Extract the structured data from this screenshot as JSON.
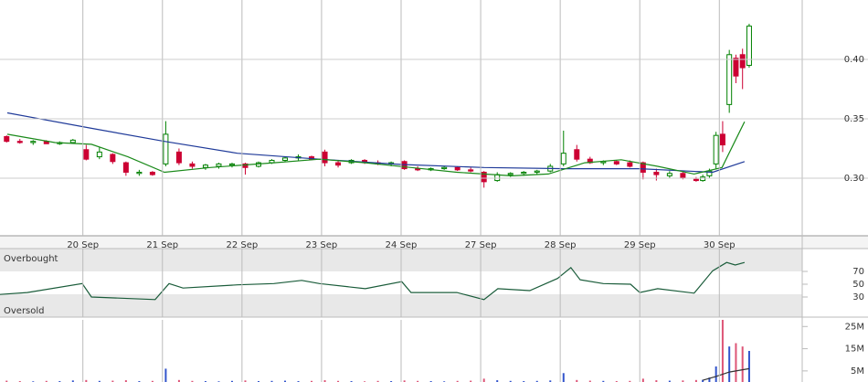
{
  "chart_data": [
    {
      "type": "candlestick",
      "x": [
        1,
        3,
        5,
        7,
        9,
        11,
        13,
        15,
        17,
        19,
        21,
        23,
        25,
        27,
        29,
        31,
        33,
        35,
        37,
        39,
        41,
        43,
        45,
        47,
        49,
        51,
        53,
        55,
        57,
        59,
        61,
        63,
        65,
        67,
        69,
        71,
        73,
        75,
        77,
        79,
        81,
        83,
        85,
        87,
        89,
        91,
        93,
        95,
        97,
        99,
        101,
        103,
        105,
        106,
        107,
        108,
        109,
        110,
        111,
        112,
        113
      ],
      "open": [
        0.335,
        0.331,
        0.33,
        0.331,
        0.329,
        0.33,
        0.324,
        0.318,
        0.32,
        0.313,
        0.304,
        0.305,
        0.312,
        0.322,
        0.312,
        0.309,
        0.31,
        0.311,
        0.312,
        0.31,
        0.313,
        0.315,
        0.317,
        0.318,
        0.322,
        0.313,
        0.313,
        0.315,
        0.313,
        0.312,
        0.314,
        0.308,
        0.307,
        0.308,
        0.309,
        0.307,
        0.305,
        0.298,
        0.303,
        0.304,
        0.305,
        0.306,
        0.312,
        0.324,
        0.316,
        0.313,
        0.314,
        0.313,
        0.313,
        0.305,
        0.302,
        0.304,
        0.299,
        0.298,
        0.302,
        0.312,
        0.337,
        0.362,
        0.401,
        0.404,
        0.395
      ],
      "high": [
        0.336,
        0.333,
        0.332,
        0.332,
        0.331,
        0.333,
        0.328,
        0.326,
        0.321,
        0.314,
        0.307,
        0.306,
        0.348,
        0.325,
        0.314,
        0.312,
        0.313,
        0.313,
        0.313,
        0.314,
        0.316,
        0.318,
        0.32,
        0.319,
        0.324,
        0.315,
        0.316,
        0.316,
        0.315,
        0.314,
        0.315,
        0.31,
        0.309,
        0.31,
        0.31,
        0.309,
        0.306,
        0.305,
        0.305,
        0.306,
        0.307,
        0.312,
        0.34,
        0.328,
        0.318,
        0.315,
        0.315,
        0.315,
        0.314,
        0.308,
        0.306,
        0.305,
        0.301,
        0.303,
        0.308,
        0.339,
        0.348,
        0.408,
        0.404,
        0.409,
        0.43
      ],
      "low": [
        0.33,
        0.329,
        0.328,
        0.329,
        0.328,
        0.329,
        0.315,
        0.316,
        0.312,
        0.302,
        0.302,
        0.302,
        0.31,
        0.311,
        0.308,
        0.307,
        0.308,
        0.309,
        0.303,
        0.309,
        0.312,
        0.314,
        0.315,
        0.315,
        0.31,
        0.309,
        0.312,
        0.312,
        0.311,
        0.31,
        0.307,
        0.306,
        0.306,
        0.307,
        0.306,
        0.305,
        0.292,
        0.297,
        0.301,
        0.302,
        0.303,
        0.305,
        0.31,
        0.314,
        0.312,
        0.311,
        0.311,
        0.309,
        0.299,
        0.298,
        0.3,
        0.299,
        0.297,
        0.297,
        0.3,
        0.308,
        0.322,
        0.355,
        0.38,
        0.375,
        0.393
      ],
      "close": [
        0.331,
        0.33,
        0.331,
        0.329,
        0.33,
        0.332,
        0.316,
        0.322,
        0.314,
        0.305,
        0.305,
        0.303,
        0.337,
        0.313,
        0.31,
        0.311,
        0.312,
        0.312,
        0.309,
        0.313,
        0.315,
        0.317,
        0.318,
        0.316,
        0.313,
        0.311,
        0.315,
        0.313,
        0.312,
        0.313,
        0.308,
        0.307,
        0.308,
        0.309,
        0.307,
        0.306,
        0.297,
        0.303,
        0.304,
        0.305,
        0.306,
        0.31,
        0.321,
        0.316,
        0.313,
        0.314,
        0.312,
        0.31,
        0.305,
        0.303,
        0.304,
        0.3,
        0.298,
        0.301,
        0.306,
        0.336,
        0.328,
        0.404,
        0.386,
        0.393,
        0.428
      ],
      "up_color": "#008000",
      "down_color": "#cc0033",
      "lines": [
        {
          "color": "#1f3a99",
          "x": [
            1.1,
            13.8,
            24.8,
            35.8,
            48.2,
            60.6,
            73,
            85.4,
            96.5,
            107.5,
            112.3
          ],
          "values": [
            0.355,
            0.342,
            0.331,
            0.321,
            0.316,
            0.3115,
            0.309,
            0.308,
            0.308,
            0.305,
            0.314
          ]
        },
        {
          "color": "#1a8a1a",
          "x": [
            1.1,
            8.3,
            13.8,
            19.3,
            24.8,
            31.7,
            41.3,
            48.2,
            55.1,
            62,
            68.9,
            77.2,
            82.7,
            88.2,
            93.7,
            99.2,
            104.7,
            108.9,
            112.3
          ],
          "values": [
            0.337,
            0.33,
            0.3285,
            0.318,
            0.305,
            0.309,
            0.313,
            0.316,
            0.313,
            0.309,
            0.305,
            0.302,
            0.3035,
            0.313,
            0.3155,
            0.31,
            0.3035,
            0.309,
            0.3475
          ]
        }
      ],
      "xlim": [
        0,
        121
      ],
      "xticks": [
        {
          "value": 12.5,
          "label": "20 Sep"
        },
        {
          "value": 24.5,
          "label": "21 Sep"
        },
        {
          "value": 36.5,
          "label": "22 Sep"
        },
        {
          "value": 48.5,
          "label": "23 Sep"
        },
        {
          "value": 60.5,
          "label": "24 Sep"
        },
        {
          "value": 72.5,
          "label": "27 Sep"
        },
        {
          "value": 84.5,
          "label": "28 Sep"
        },
        {
          "value": 96.5,
          "label": "29 Sep"
        },
        {
          "value": 108.5,
          "label": "30 Sep"
        }
      ],
      "ylim": [
        0.2515,
        0.45
      ],
      "yticks": [
        {
          "value": 0.3,
          "label": "0.30"
        },
        0.35,
        {
          "value": 0.4,
          "label": "0.40"
        }
      ],
      "grid": true
    },
    {
      "type": "line",
      "x": [
        0,
        4.1,
        12.4,
        13.8,
        23.4,
        25.5,
        27.6,
        35.8,
        41.3,
        45.5,
        48.2,
        55.1,
        60.6,
        62,
        68.9,
        73,
        75.1,
        79.9,
        84.1,
        86.1,
        87.5,
        91,
        95.1,
        96.5,
        99.2,
        104.7,
        107.5,
        109.6,
        110.9,
        112.3
      ],
      "values": [
        34,
        37,
        51,
        30,
        26,
        51,
        44,
        49,
        51,
        56,
        51,
        43,
        54,
        37,
        37,
        26,
        43,
        40,
        59,
        76,
        57,
        51,
        50,
        37,
        43,
        36,
        71,
        84,
        80,
        84
      ],
      "color": "#1a5c3a",
      "annotations": [
        "Overbought",
        "Oversold"
      ],
      "xlim": [
        0,
        121
      ],
      "ylim": [
        -1.4,
        105.7
      ],
      "yticks": [
        30,
        50,
        70
      ]
    },
    {
      "type": "bar",
      "values": [
        600000,
        400000,
        300000,
        500000,
        400000,
        700000,
        900000,
        500000,
        600000,
        800000,
        400000,
        500000,
        6000000,
        900000,
        500000,
        400000,
        300000,
        500000,
        700000,
        400000,
        500000,
        600000,
        400000,
        500000,
        800000,
        500000,
        400000,
        300000,
        500000,
        400000,
        700000,
        500000,
        400000,
        300000,
        500000,
        600000,
        1500000,
        800000,
        500000,
        400000,
        500000,
        700000,
        4000000,
        900000,
        600000,
        500000,
        400000,
        500000,
        1500000,
        800000,
        600000,
        700000,
        900000,
        1000000,
        2000000,
        7000000,
        28000000,
        16000000,
        17500000,
        16000000,
        14000000
      ],
      "up_color": "#3355cc",
      "down_color": "#dd5577",
      "lines": [
        {
          "color": "#333333",
          "x": [
            106,
            108,
            110,
            112,
            113
          ],
          "values": [
            800000,
            2500000,
            4500000,
            5500000,
            6000000
          ]
        }
      ],
      "xlim": [
        0,
        121
      ],
      "ylim": [
        0,
        28000000
      ],
      "yticks": [
        {
          "value": 5000000,
          "label": "5M"
        },
        {
          "value": 15000000,
          "label": "15M"
        },
        {
          "value": 25000000,
          "label": "25M"
        }
      ]
    }
  ]
}
